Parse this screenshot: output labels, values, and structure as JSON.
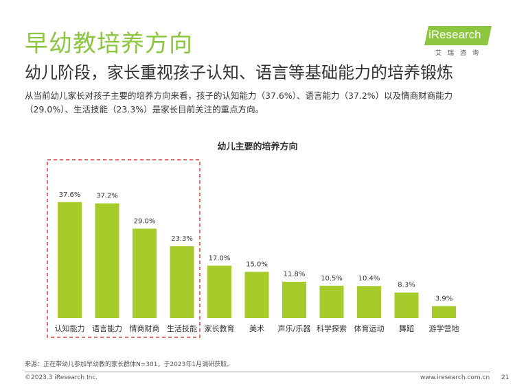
{
  "header": {
    "title": "早幼教培养方向",
    "subtitle": "幼儿阶段，家长重视孩子认知、语言等基础能力的培养锻炼",
    "summary": "从当前幼儿家长对孩子主要的培养方向来看，孩子的认知能力（37.6%）、语言能力（37.2%）以及情商财商能力（29.0%）、生活技能（23.3%）是家长目前关注的重点方向。"
  },
  "logo": {
    "name": "iResearch",
    "sub": "艾瑞咨询"
  },
  "colors": {
    "accent": "#8cc63f",
    "bar": "#a5cc2a",
    "highlight_box": "#e03c3c"
  },
  "chart_data": {
    "type": "bar",
    "title": "幼儿主要的培养方向",
    "categories": [
      "认知能力",
      "语言能力",
      "情商财商",
      "生活技能",
      "家长教育",
      "美术",
      "声乐/乐器",
      "科学探索",
      "体育运动",
      "舞蹈",
      "游学营地"
    ],
    "values": [
      37.6,
      37.2,
      29.0,
      23.3,
      17.0,
      15.0,
      11.8,
      10.5,
      10.4,
      8.3,
      3.9
    ],
    "value_labels": [
      "37.6%",
      "37.2%",
      "29.0%",
      "23.3%",
      "17.0%",
      "15.0%",
      "11.8%",
      "10.5%",
      "10.4%",
      "8.3%",
      "3.9%"
    ],
    "unit": "%",
    "ylim": [
      0,
      40
    ],
    "grid": false,
    "highlighted_categories": [
      "认知能力",
      "语言能力",
      "情商财商",
      "生活技能"
    ]
  },
  "footer": {
    "source": "来源：正在带幼儿参加早幼教的家长群体N=301，于2023年1月调研获取。",
    "copyright": "©2023.3 iResearch Inc.",
    "url": "www.iresearch.com.cn",
    "page_number": "21"
  }
}
